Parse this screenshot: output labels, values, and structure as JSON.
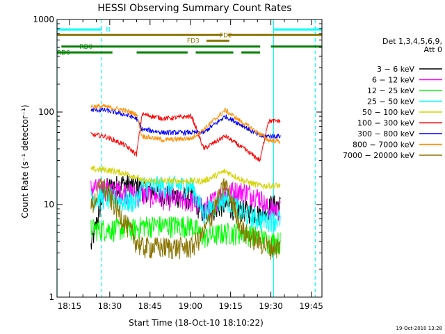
{
  "chart_data": {
    "type": "line",
    "title": "HESSI Observing Summary Count Rates",
    "xlabel": "Start Time (18-Oct-10 18:10:22)",
    "ylabel": "Count Rate (s⁻¹ detector⁻¹)",
    "yscale": "log",
    "ylim": [
      1,
      1000
    ],
    "xlim": [
      "18:10:22",
      "19:49:00"
    ],
    "x_ticks": [
      "18:15",
      "18:30",
      "18:45",
      "19:00",
      "19:15",
      "19:30",
      "19:45"
    ],
    "y_ticks": [
      "1",
      "10",
      "100",
      "1000"
    ],
    "timestamp": "19-Oct-2010 13:28",
    "legend": {
      "placement": "right",
      "header": [
        "Det 1,3,4,5,6,9,",
        "Att 0"
      ],
      "entries": [
        {
          "label": "3 − 6 keV",
          "color": "#000000"
        },
        {
          "label": "6 − 12 keV",
          "color": "#ff00ff"
        },
        {
          "label": "12 − 25 keV",
          "color": "#00ff00"
        },
        {
          "label": "25 − 50 keV",
          "color": "#00ffff"
        },
        {
          "label": "50 − 100 keV",
          "color": "#d4d400"
        },
        {
          "label": "100 − 300 keV",
          "color": "#ff0000"
        },
        {
          "label": "300 − 800 keV",
          "color": "#0000ff"
        },
        {
          "label": "800 − 7000 keV",
          "color": "#ff8c00"
        },
        {
          "label": "7000 − 20000 keV",
          "color": "#8b7500"
        }
      ]
    },
    "flags": [
      {
        "name": "N",
        "color": "#00ffff",
        "segments": [
          [
            "18:10:22",
            "18:27:00"
          ],
          [
            "19:31:00",
            "19:49:00"
          ]
        ],
        "level": 780
      },
      {
        "name": "FD2",
        "color": "#8b7500",
        "segments": [
          [
            "18:10:22",
            "19:12:00"
          ],
          [
            "19:14:00",
            "19:49:00"
          ]
        ],
        "level": 680
      },
      {
        "name": "FD3",
        "color": "#8b7500",
        "segments": [
          [
            "19:06:00",
            "19:14:30"
          ]
        ],
        "level": 590
      },
      {
        "name": "RD0",
        "color": "#008000",
        "segments": [
          [
            "18:12:00",
            "18:40:00"
          ],
          [
            "18:40:00",
            "19:00:00"
          ],
          [
            "19:00:00",
            "19:26:00"
          ],
          [
            "19:30:00",
            "19:49:00"
          ]
        ],
        "level": 510
      },
      {
        "name": "RD6",
        "color": "#008000",
        "segments": [
          [
            "18:10:22",
            "18:31:00"
          ],
          [
            "18:40:00",
            "18:59:00"
          ],
          [
            "19:02:00",
            "19:16:00"
          ],
          [
            "19:19:00",
            "19:26:00"
          ]
        ],
        "level": 440
      }
    ],
    "vlines": [
      {
        "x": "18:10:22",
        "color": "#00ffff",
        "style": "solid"
      },
      {
        "x": "18:27:00",
        "color": "#00ffff",
        "style": "dashed"
      },
      {
        "x": "19:31:00",
        "color": "#00ffff",
        "style": "solid"
      },
      {
        "x": "19:46:30",
        "color": "#00ffff",
        "style": "dashed"
      }
    ],
    "data_interval": [
      "18:23:00",
      "19:33:30"
    ],
    "attenuator_steps": [
      "18:40:00",
      "19:00:30",
      "19:26:00"
    ],
    "series": [
      {
        "name": "3 − 6 keV",
        "color": "#000000",
        "x": [
          "18:23:00",
          "18:28:00",
          "18:35:00",
          "18:40:00",
          "18:42:00",
          "18:50:00",
          "19:00:30",
          "19:05:00",
          "19:12:00",
          "19:18:00",
          "19:26:00",
          "19:29:00",
          "19:30:00",
          "19:33:30"
        ],
        "y": [
          3.5,
          15,
          17,
          16,
          15,
          13,
          12,
          8,
          10,
          9,
          8,
          9,
          10,
          10
        ]
      },
      {
        "name": "6 − 12 keV",
        "color": "#ff00ff",
        "x": [
          "18:23:00",
          "18:28:00",
          "18:35:00",
          "18:40:00",
          "18:42:00",
          "18:50:00",
          "19:00:30",
          "19:05:00",
          "19:13:00",
          "19:20:00",
          "19:26:00",
          "19:29:00",
          "19:33:30"
        ],
        "y": [
          15,
          15,
          14,
          13,
          13,
          12,
          11,
          9,
          14,
          14,
          12,
          9,
          9
        ]
      },
      {
        "name": "12 − 25 keV",
        "color": "#00ff00",
        "x": [
          "18:23:00",
          "18:28:00",
          "18:35:00",
          "18:40:00",
          "18:42:00",
          "18:50:00",
          "19:00:30",
          "19:05:00",
          "19:13:00",
          "19:20:00",
          "19:26:00",
          "19:29:00",
          "19:33:30"
        ],
        "y": [
          5.5,
          5.5,
          5.5,
          5.5,
          6,
          6,
          6,
          4.5,
          5,
          5,
          4.5,
          4,
          4
        ]
      },
      {
        "name": "25 − 50 keV",
        "color": "#00ffff",
        "x": [
          "18:23:00",
          "18:28:00",
          "18:35:00",
          "18:40:00",
          "18:42:00",
          "18:50:00",
          "19:00:30",
          "19:05:00",
          "19:13:00",
          "19:20:00",
          "19:26:00",
          "19:29:00",
          "19:33:30"
        ],
        "y": [
          12,
          12,
          11,
          11,
          16,
          16,
          16,
          8,
          12,
          8,
          7,
          7,
          7
        ]
      },
      {
        "name": "50 − 100 keV",
        "color": "#d4d400",
        "x": [
          "18:23:00",
          "18:28:00",
          "18:35:00",
          "18:40:00",
          "18:42:00",
          "18:50:00",
          "19:00:30",
          "19:05:00",
          "19:13:00",
          "19:20:00",
          "19:26:00",
          "19:29:00",
          "19:33:30"
        ],
        "y": [
          24,
          24,
          22,
          20,
          18,
          18,
          18,
          18,
          23,
          18,
          16,
          16,
          16
        ]
      },
      {
        "name": "100 − 300 keV",
        "color": "#ff0000",
        "x": [
          "18:23:00",
          "18:28:00",
          "18:35:00",
          "18:40:00",
          "18:42:00",
          "18:50:00",
          "19:00:30",
          "19:05:00",
          "19:13:00",
          "19:20:00",
          "19:26:00",
          "19:29:00",
          "19:33:30"
        ],
        "y": [
          57,
          55,
          45,
          35,
          95,
          85,
          90,
          40,
          55,
          40,
          30,
          80,
          80
        ]
      },
      {
        "name": "300 − 800 keV",
        "color": "#0000ff",
        "x": [
          "18:23:00",
          "18:28:00",
          "18:35:00",
          "18:40:00",
          "18:42:00",
          "18:50:00",
          "19:00:30",
          "19:05:00",
          "19:13:00",
          "19:20:00",
          "19:26:00",
          "19:29:00",
          "19:33:30"
        ],
        "y": [
          105,
          105,
          95,
          85,
          65,
          60,
          60,
          60,
          90,
          70,
          55,
          55,
          55
        ]
      },
      {
        "name": "800 − 7000 keV",
        "color": "#ff8c00",
        "x": [
          "18:23:00",
          "18:28:00",
          "18:35:00",
          "18:40:00",
          "18:42:00",
          "18:50:00",
          "19:00:30",
          "19:05:00",
          "19:13:00",
          "19:20:00",
          "19:26:00",
          "19:29:00",
          "19:33:30"
        ],
        "y": [
          115,
          115,
          105,
          95,
          55,
          50,
          52,
          65,
          105,
          75,
          58,
          50,
          48
        ]
      },
      {
        "name": "7000 − 20000 keV",
        "color": "#8b7500",
        "x": [
          "18:23:00",
          "18:27:00",
          "18:35:00",
          "18:40:00",
          "18:42:00",
          "18:50:00",
          "19:00:30",
          "19:05:00",
          "19:13:00",
          "19:20:00",
          "19:26:00",
          "19:29:00",
          "19:33:30"
        ],
        "y": [
          9,
          17,
          7,
          4,
          3.5,
          3.5,
          3.5,
          5,
          17,
          5,
          4,
          3.5,
          3.5
        ]
      }
    ]
  }
}
